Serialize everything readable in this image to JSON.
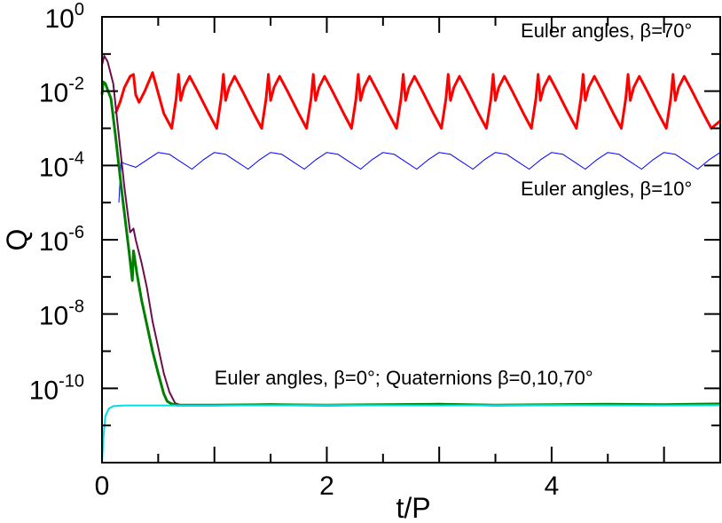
{
  "chart_data": {
    "type": "line",
    "title": "",
    "xlabel": "t/P",
    "ylabel": "Q",
    "xlim": [
      0,
      5.5
    ],
    "ylim_log10": [
      -12,
      0
    ],
    "y_scale": "log",
    "x_ticks": [
      {
        "value": 0,
        "label": "0"
      },
      {
        "value": 2,
        "label": "2"
      },
      {
        "value": 4,
        "label": "4"
      }
    ],
    "y_ticks": [
      {
        "exp": 0,
        "base": "10",
        "sup": "0"
      },
      {
        "exp": -2,
        "base": "10",
        "sup": "-2"
      },
      {
        "exp": -4,
        "base": "10",
        "sup": "-4"
      },
      {
        "exp": -6,
        "base": "10",
        "sup": "-6"
      },
      {
        "exp": -8,
        "base": "10",
        "sup": "-8"
      },
      {
        "exp": -10,
        "base": "10",
        "sup": "-10"
      }
    ],
    "annotations": [
      {
        "text": "Euler angles, β=70°",
        "x": 5.25,
        "y_log10": -0.55,
        "anchor": "end"
      },
      {
        "text": "Euler angles, β=10°",
        "x": 5.25,
        "y_log10": -4.8,
        "anchor": "end"
      },
      {
        "text": "Euler angles, β=0°; Quaternions  β=0,10,70°",
        "x": 1.0,
        "y_log10": -9.9,
        "anchor": "start"
      }
    ],
    "series": [
      {
        "color": "#ff0000",
        "width": 3,
        "x": [
          0.12,
          0.16,
          0.2,
          0.25,
          0.28,
          0.3,
          0.33,
          0.38,
          0.45,
          0.55,
          0.62,
          0.66,
          0.68,
          0.7,
          0.73,
          0.78,
          0.85,
          0.95,
          1.02,
          1.06,
          1.08,
          1.1,
          1.13,
          1.18,
          1.25,
          1.35,
          1.42,
          1.46,
          1.48,
          1.5,
          1.53,
          1.58,
          1.65,
          1.75,
          1.82,
          1.86,
          1.88,
          1.9,
          1.93,
          1.98,
          2.05,
          2.15,
          2.22,
          2.26,
          2.28,
          2.3,
          2.33,
          2.38,
          2.45,
          2.55,
          2.62,
          2.66,
          2.68,
          2.7,
          2.73,
          2.78,
          2.85,
          2.95,
          3.02,
          3.06,
          3.08,
          3.1,
          3.13,
          3.18,
          3.25,
          3.35,
          3.42,
          3.46,
          3.48,
          3.5,
          3.53,
          3.58,
          3.65,
          3.75,
          3.82,
          3.86,
          3.88,
          3.9,
          3.93,
          3.98,
          4.05,
          4.15,
          4.22,
          4.26,
          4.28,
          4.3,
          4.33,
          4.38,
          4.45,
          4.55,
          4.62,
          4.66,
          4.68,
          4.7,
          4.73,
          4.78,
          4.85,
          4.95,
          5.02,
          5.06,
          5.08,
          5.1,
          5.13,
          5.18,
          5.25,
          5.35,
          5.42,
          5.5
        ],
        "y_log10": [
          -2.6,
          -2.3,
          -1.9,
          -1.6,
          -1.55,
          -2.1,
          -2.3,
          -2.0,
          -1.5,
          -2.6,
          -3.0,
          -2.2,
          -1.55,
          -2.25,
          -1.9,
          -1.6,
          -2.0,
          -2.6,
          -3.0,
          -2.2,
          -1.55,
          -2.25,
          -1.9,
          -1.6,
          -2.0,
          -2.6,
          -3.0,
          -2.2,
          -1.55,
          -2.25,
          -1.9,
          -1.6,
          -2.0,
          -2.6,
          -3.0,
          -2.2,
          -1.55,
          -2.25,
          -1.9,
          -1.6,
          -2.0,
          -2.6,
          -3.0,
          -2.2,
          -1.55,
          -2.25,
          -1.9,
          -1.6,
          -2.0,
          -2.6,
          -3.0,
          -2.2,
          -1.55,
          -2.25,
          -1.9,
          -1.6,
          -2.0,
          -2.6,
          -3.0,
          -2.2,
          -1.55,
          -2.25,
          -1.9,
          -1.6,
          -2.0,
          -2.6,
          -3.0,
          -2.2,
          -1.55,
          -2.25,
          -1.9,
          -1.6,
          -2.0,
          -2.6,
          -3.0,
          -2.2,
          -1.55,
          -2.25,
          -1.9,
          -1.6,
          -2.0,
          -2.6,
          -3.0,
          -2.2,
          -1.55,
          -2.25,
          -1.9,
          -1.6,
          -2.0,
          -2.6,
          -3.0,
          -2.2,
          -1.55,
          -2.25,
          -1.9,
          -1.6,
          -2.0,
          -2.6,
          -3.0,
          -2.2,
          -1.55,
          -2.25,
          -1.9,
          -1.6,
          -2.0,
          -2.6,
          -3.0,
          -2.8
        ]
      },
      {
        "color": "#0000ff",
        "width": 1,
        "x": [
          0.15,
          0.17,
          0.2,
          0.3,
          0.4,
          0.5,
          0.6,
          0.7,
          0.8,
          0.9,
          1.0,
          1.1,
          1.2,
          1.3,
          1.4,
          1.5,
          1.6,
          1.7,
          1.8,
          1.9,
          2.0,
          2.1,
          2.2,
          2.3,
          2.4,
          2.5,
          2.6,
          2.7,
          2.8,
          2.9,
          3.0,
          3.1,
          3.2,
          3.3,
          3.4,
          3.5,
          3.6,
          3.7,
          3.8,
          3.9,
          4.0,
          4.1,
          4.2,
          4.3,
          4.4,
          4.5,
          4.6,
          4.7,
          4.8,
          4.9,
          5.0,
          5.1,
          5.2,
          5.3,
          5.4,
          5.5
        ],
        "y_log10": [
          -5.0,
          -3.9,
          -3.95,
          -4.05,
          -3.85,
          -3.65,
          -3.7,
          -3.9,
          -4.1,
          -3.85,
          -3.65,
          -3.7,
          -3.9,
          -4.1,
          -3.85,
          -3.65,
          -3.7,
          -3.9,
          -4.1,
          -3.85,
          -3.65,
          -3.7,
          -3.9,
          -4.1,
          -3.85,
          -3.65,
          -3.7,
          -3.9,
          -4.1,
          -3.85,
          -3.65,
          -3.7,
          -3.9,
          -4.1,
          -3.85,
          -3.65,
          -3.7,
          -3.9,
          -4.1,
          -3.85,
          -3.65,
          -3.7,
          -3.9,
          -4.1,
          -3.85,
          -3.65,
          -3.7,
          -3.9,
          -4.1,
          -3.85,
          -3.65,
          -3.7,
          -3.9,
          -4.1,
          -3.85,
          -3.65
        ]
      },
      {
        "color": "#6b0f4a",
        "width": 2,
        "x": [
          0.0,
          0.02,
          0.05,
          0.1,
          0.15,
          0.2,
          0.25,
          0.28,
          0.3,
          0.35,
          0.4,
          0.45,
          0.5,
          0.55,
          0.6,
          0.65,
          0.7,
          1.0,
          1.5,
          2.0,
          2.5,
          3.0,
          3.5,
          4.0,
          4.5,
          5.0,
          5.5
        ],
        "y_log10": [
          -1.3,
          -1.05,
          -1.2,
          -1.8,
          -3.2,
          -4.6,
          -5.8,
          -5.7,
          -6.0,
          -6.6,
          -7.3,
          -8.2,
          -8.9,
          -9.6,
          -10.1,
          -10.4,
          -10.45,
          -10.45,
          -10.43,
          -10.45,
          -10.44,
          -10.42,
          -10.45,
          -10.44,
          -10.43,
          -10.44,
          -10.42
        ]
      },
      {
        "color": "#008000",
        "width": 3,
        "x": [
          0.0,
          0.01,
          0.03,
          0.08,
          0.12,
          0.18,
          0.24,
          0.27,
          0.28,
          0.29,
          0.31,
          0.35,
          0.4,
          0.45,
          0.5,
          0.55,
          0.58,
          0.62,
          0.66,
          1.0,
          1.5,
          2.0,
          2.5,
          3.0,
          3.5,
          4.0,
          4.5,
          5.0,
          5.5
        ],
        "y_log10": [
          -2.1,
          -1.75,
          -1.8,
          -2.2,
          -3.2,
          -4.8,
          -6.3,
          -7.1,
          -6.3,
          -6.5,
          -6.9,
          -7.6,
          -8.3,
          -9.0,
          -9.6,
          -10.15,
          -10.35,
          -10.42,
          -10.45,
          -10.45,
          -10.44,
          -10.45,
          -10.44,
          -10.43,
          -10.45,
          -10.44,
          -10.43,
          -10.44,
          -10.42
        ]
      },
      {
        "color": "#00e0e0",
        "width": 2,
        "x": [
          0.0,
          0.01,
          0.03,
          0.06,
          0.1,
          0.2,
          0.5,
          1.0,
          2.0,
          3.0,
          4.0,
          5.0,
          5.5
        ],
        "y_log10": [
          -12,
          -11.4,
          -10.75,
          -10.55,
          -10.48,
          -10.46,
          -10.46,
          -10.46,
          -10.45,
          -10.46,
          -10.45,
          -10.46,
          -10.45
        ]
      }
    ]
  }
}
